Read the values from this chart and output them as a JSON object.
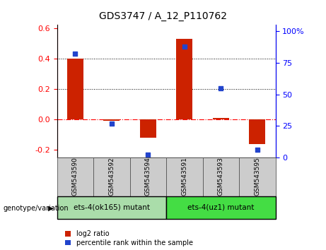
{
  "title": "GDS3747 / A_12_P110762",
  "categories": [
    "GSM543590",
    "GSM543592",
    "GSM543594",
    "GSM543591",
    "GSM543593",
    "GSM543595"
  ],
  "log2_ratio": [
    0.4,
    -0.01,
    -0.12,
    0.53,
    0.01,
    -0.16
  ],
  "percentile_rank_pct": [
    82,
    27,
    2,
    88,
    55,
    6
  ],
  "bar_color": "#cc2200",
  "dot_color": "#2244cc",
  "ylim_left": [
    -0.25,
    0.62
  ],
  "ylim_right": [
    0,
    105
  ],
  "yticks_left": [
    -0.2,
    0.0,
    0.2,
    0.4,
    0.6
  ],
  "yticks_right": [
    0,
    25,
    50,
    75,
    100
  ],
  "group1_label": "ets-4(ok165) mutant",
  "group2_label": "ets-4(uz1) mutant",
  "group1_indices": [
    0,
    1,
    2
  ],
  "group2_indices": [
    3,
    4,
    5
  ],
  "group1_color": "#aaddaa",
  "group2_color": "#44dd44",
  "sample_bg_color": "#cccccc",
  "legend_log2_label": "log2 ratio",
  "legend_pct_label": "percentile rank within the sample",
  "genotype_label": "genotype/variation"
}
